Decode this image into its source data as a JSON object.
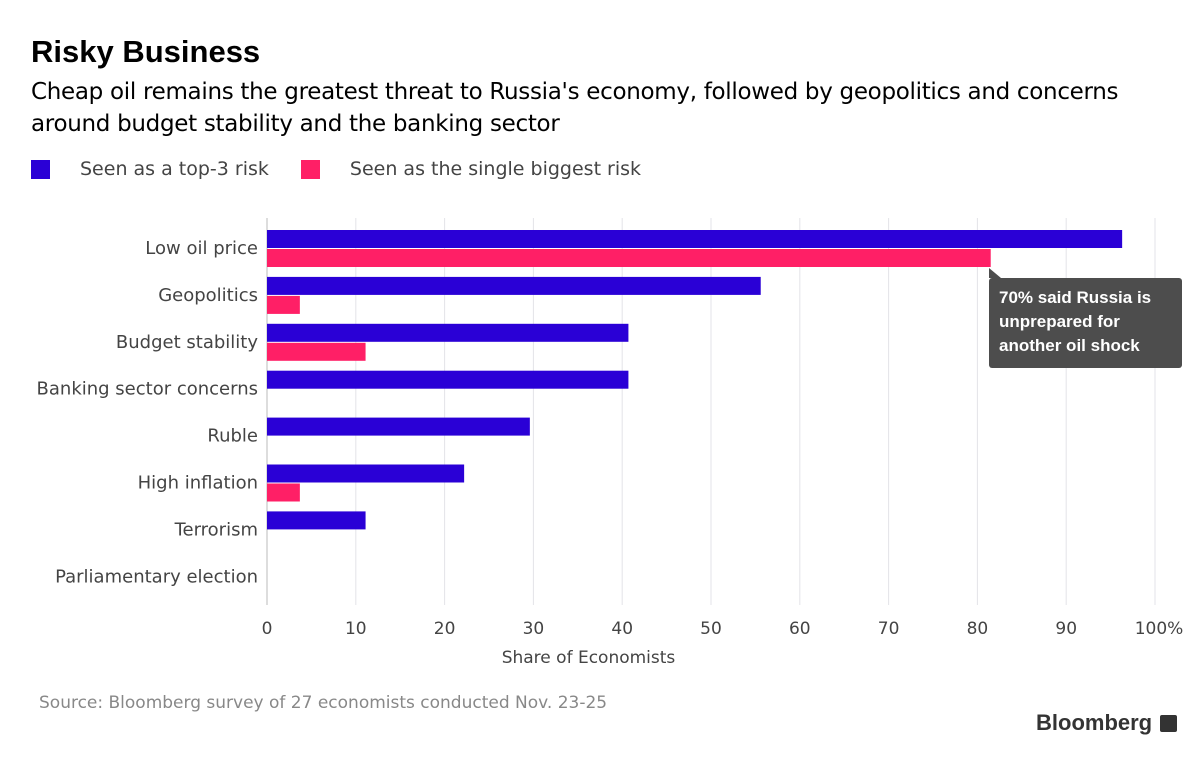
{
  "title": "Risky Business",
  "subtitle": "Cheap oil remains the greatest threat to Russia's economy, followed by geopolitics and concerns around budget stability and the banking sector",
  "source": "Source: Bloomberg survey of 27 economists conducted Nov. 23-25",
  "brand": "Bloomberg",
  "annotation": "70% said Russia is unprepared for another oil shock",
  "chart_data": {
    "type": "bar",
    "orientation": "horizontal",
    "title": "Risky Business",
    "xlabel": "Share of Economists",
    "ylabel": "",
    "xlim": [
      0,
      100
    ],
    "x_ticks": [
      "0",
      "10",
      "20",
      "30",
      "40",
      "50",
      "60",
      "70",
      "80",
      "90",
      "100%"
    ],
    "grid": true,
    "legend_position": "top-left",
    "categories": [
      "Low oil price",
      "Geopolitics",
      "Budget stability",
      "Banking sector concerns",
      "Ruble",
      "High inflation",
      "Terrorism",
      "Parliamentary election"
    ],
    "series": [
      {
        "name": "Seen as a top-3 risk",
        "color": "#2a00d6",
        "values": [
          96.3,
          55.6,
          40.7,
          40.7,
          29.6,
          22.2,
          11.1,
          0
        ]
      },
      {
        "name": "Seen as the single biggest risk",
        "color": "#ff1f66",
        "values": [
          81.5,
          3.7,
          11.1,
          0,
          0,
          3.7,
          0,
          0
        ]
      }
    ]
  }
}
